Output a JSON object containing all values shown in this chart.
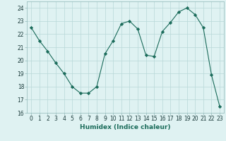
{
  "x": [
    0,
    1,
    2,
    3,
    4,
    5,
    6,
    7,
    8,
    9,
    10,
    11,
    12,
    13,
    14,
    15,
    16,
    17,
    18,
    19,
    20,
    21,
    22,
    23
  ],
  "y": [
    22.5,
    21.5,
    20.7,
    19.8,
    19.0,
    18.0,
    17.5,
    17.5,
    18.0,
    20.5,
    21.5,
    22.8,
    23.0,
    22.4,
    20.4,
    20.3,
    22.2,
    22.9,
    23.7,
    24.0,
    23.5,
    22.5,
    18.9,
    16.5
  ],
  "line_color": "#1a6b5a",
  "marker": "D",
  "marker_size": 2.2,
  "bg_color": "#dff2f2",
  "grid_color": "#b8d8d8",
  "xlabel": "Humidex (Indice chaleur)",
  "xlim": [
    -0.5,
    23.5
  ],
  "ylim": [
    16,
    24.5
  ],
  "yticks": [
    16,
    17,
    18,
    19,
    20,
    21,
    22,
    23,
    24
  ],
  "xticks": [
    0,
    1,
    2,
    3,
    4,
    5,
    6,
    7,
    8,
    9,
    10,
    11,
    12,
    13,
    14,
    15,
    16,
    17,
    18,
    19,
    20,
    21,
    22,
    23
  ],
  "xlabel_fontsize": 6.5,
  "tick_fontsize": 5.5
}
